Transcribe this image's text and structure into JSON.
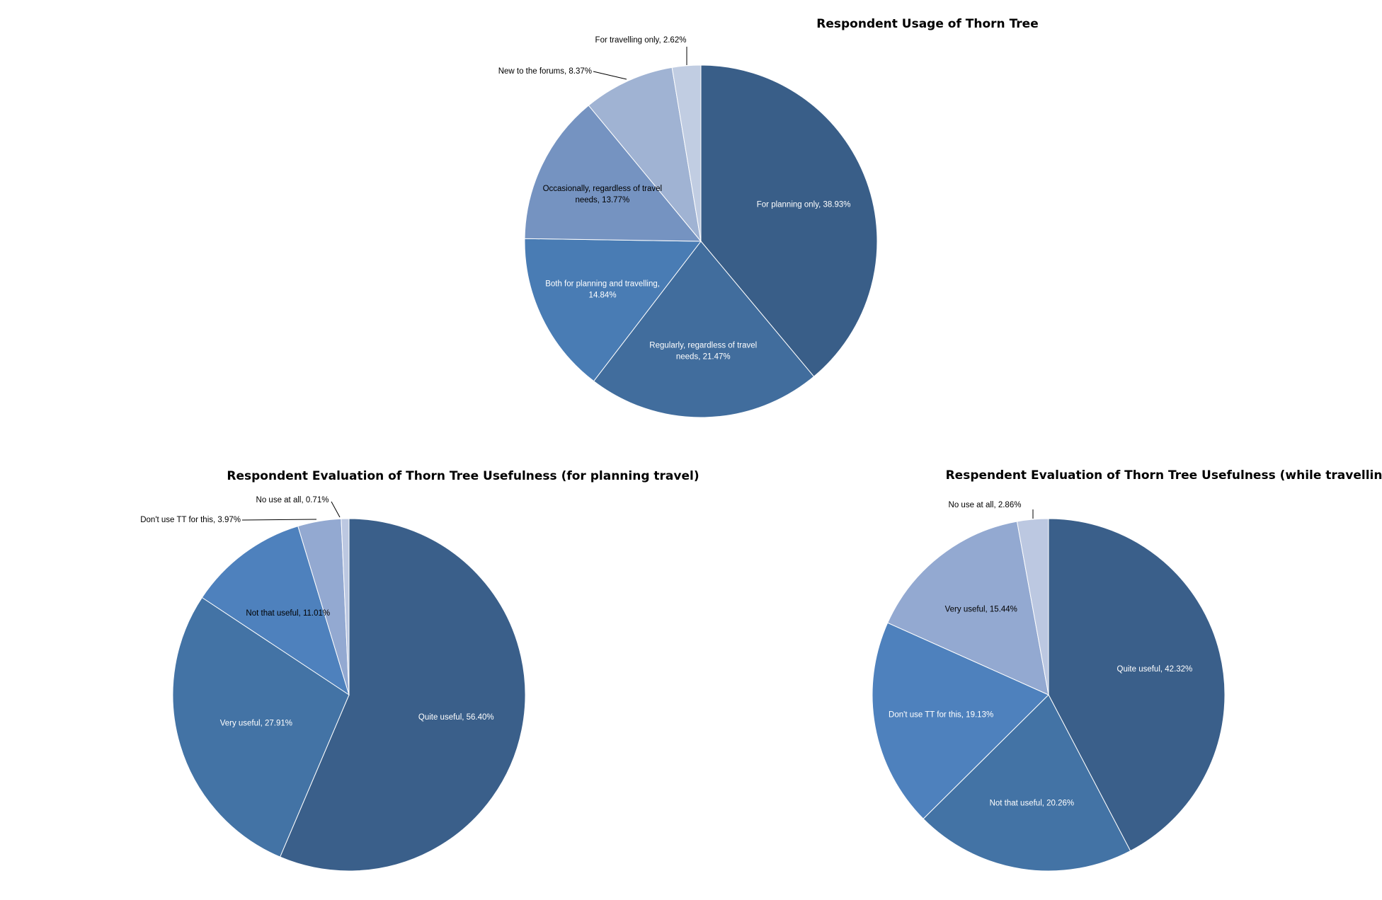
{
  "chart_data": [
    {
      "type": "pie",
      "title": "Respondent Usage of Thorn Tree",
      "start_angle_deg": 0,
      "direction": "clockwise",
      "slices": [
        {
          "label": "For planning only",
          "value": 38.93,
          "display": "For planning only, 38.93%",
          "lines": [
            "For planning only, 38.93%"
          ],
          "color": "#395e88",
          "label_color": "#ffffff",
          "label_position": "inside"
        },
        {
          "label": "Regularly, regardless of travel needs",
          "value": 21.47,
          "display": "Regularly, regardless of travel needs, 21.47%",
          "lines": [
            "Regularly, regardless of travel",
            "needs, 21.47%"
          ],
          "color": "#416d9d",
          "label_color": "#ffffff",
          "label_position": "inside"
        },
        {
          "label": "Both for planning and travelling",
          "value": 14.84,
          "display": "Both for planning and travelling, 14.84%",
          "lines": [
            "Both for planning and travelling,",
            "14.84%"
          ],
          "color": "#497cb4",
          "label_color": "#ffffff",
          "label_position": "inside"
        },
        {
          "label": "Occasionally, regardless of travel needs",
          "value": 13.77,
          "display": "Occasionally, regardless of travel needs, 13.77%",
          "lines": [
            "Occasionally, regardless of travel",
            "needs, 13.77%"
          ],
          "color": "#7593c1",
          "label_color": "#000000",
          "label_position": "inside"
        },
        {
          "label": "New to the forums",
          "value": 8.37,
          "display": "New to the forums, 8.37%",
          "lines": [
            "New to the forums, 8.37%"
          ],
          "color": "#a0b3d3",
          "label_color": "#000000",
          "label_position": "outside"
        },
        {
          "label": "For travelling only",
          "value": 2.62,
          "display": "For travelling only, 2.62%",
          "lines": [
            "For travelling only, 2.62%"
          ],
          "color": "#c1cde2",
          "label_color": "#000000",
          "label_position": "outside"
        }
      ]
    },
    {
      "type": "pie",
      "title": "Respondent Evaluation of Thorn Tree Usefulness (for planning travel)",
      "start_angle_deg": 0,
      "direction": "clockwise",
      "slices": [
        {
          "label": "Quite useful",
          "value": 56.4,
          "display": "Quite useful, 56.40%",
          "lines": [
            "Quite useful, 56.40%"
          ],
          "color": "#3a5f8a",
          "label_color": "#ffffff",
          "label_position": "inside"
        },
        {
          "label": "Very useful",
          "value": 27.91,
          "display": "Very useful, 27.91%",
          "lines": [
            "Very useful, 27.91%"
          ],
          "color": "#4373a5",
          "label_color": "#ffffff",
          "label_position": "inside"
        },
        {
          "label": "Not that useful",
          "value": 11.01,
          "display": "Not that useful, 11.01%",
          "lines": [
            "Not that useful, 11.01%"
          ],
          "color": "#4e81bd",
          "label_color": "#000000",
          "label_position": "inside"
        },
        {
          "label": "Don't use TT for this",
          "value": 3.97,
          "display": "Don't use TT for this, 3.97%",
          "lines": [
            "Don't use TT for this, 3.97%"
          ],
          "color": "#93a9d1",
          "label_color": "#000000",
          "label_position": "outside"
        },
        {
          "label": "No use at all",
          "value": 0.71,
          "display": "No use at all, 0.71%",
          "lines": [
            "No use at all, 0.71%"
          ],
          "color": "#bcc8e1",
          "label_color": "#000000",
          "label_position": "outside"
        }
      ]
    },
    {
      "type": "pie",
      "title": "Respendent Evaluation of Thorn Tree Usefulness (while travelling)",
      "start_angle_deg": 0,
      "direction": "clockwise",
      "slices": [
        {
          "label": "Quite useful",
          "value": 42.32,
          "display": "Quite useful, 42.32%",
          "lines": [
            "Quite useful, 42.32%"
          ],
          "color": "#3a5f8a",
          "label_color": "#ffffff",
          "label_position": "inside"
        },
        {
          "label": "Not that useful",
          "value": 20.26,
          "display": "Not that useful, 20.26%",
          "lines": [
            "Not that useful, 20.26%"
          ],
          "color": "#4373a5",
          "label_color": "#ffffff",
          "label_position": "inside"
        },
        {
          "label": "Don't use TT for this",
          "value": 19.13,
          "display": "Don't use TT for this, 19.13%",
          "lines": [
            "Don't use TT for this, 19.13%"
          ],
          "color": "#4e81bd",
          "label_color": "#ffffff",
          "label_position": "inside"
        },
        {
          "label": "Very useful",
          "value": 15.44,
          "display": "Very useful, 15.44%",
          "lines": [
            "Very useful, 15.44%"
          ],
          "color": "#93a9d1",
          "label_color": "#000000",
          "label_position": "inside"
        },
        {
          "label": "No use at all",
          "value": 2.86,
          "display": "No use at all, 2.86%",
          "lines": [
            "No use at all, 2.86%"
          ],
          "color": "#bcc8e1",
          "label_color": "#000000",
          "label_position": "outside"
        }
      ]
    }
  ]
}
